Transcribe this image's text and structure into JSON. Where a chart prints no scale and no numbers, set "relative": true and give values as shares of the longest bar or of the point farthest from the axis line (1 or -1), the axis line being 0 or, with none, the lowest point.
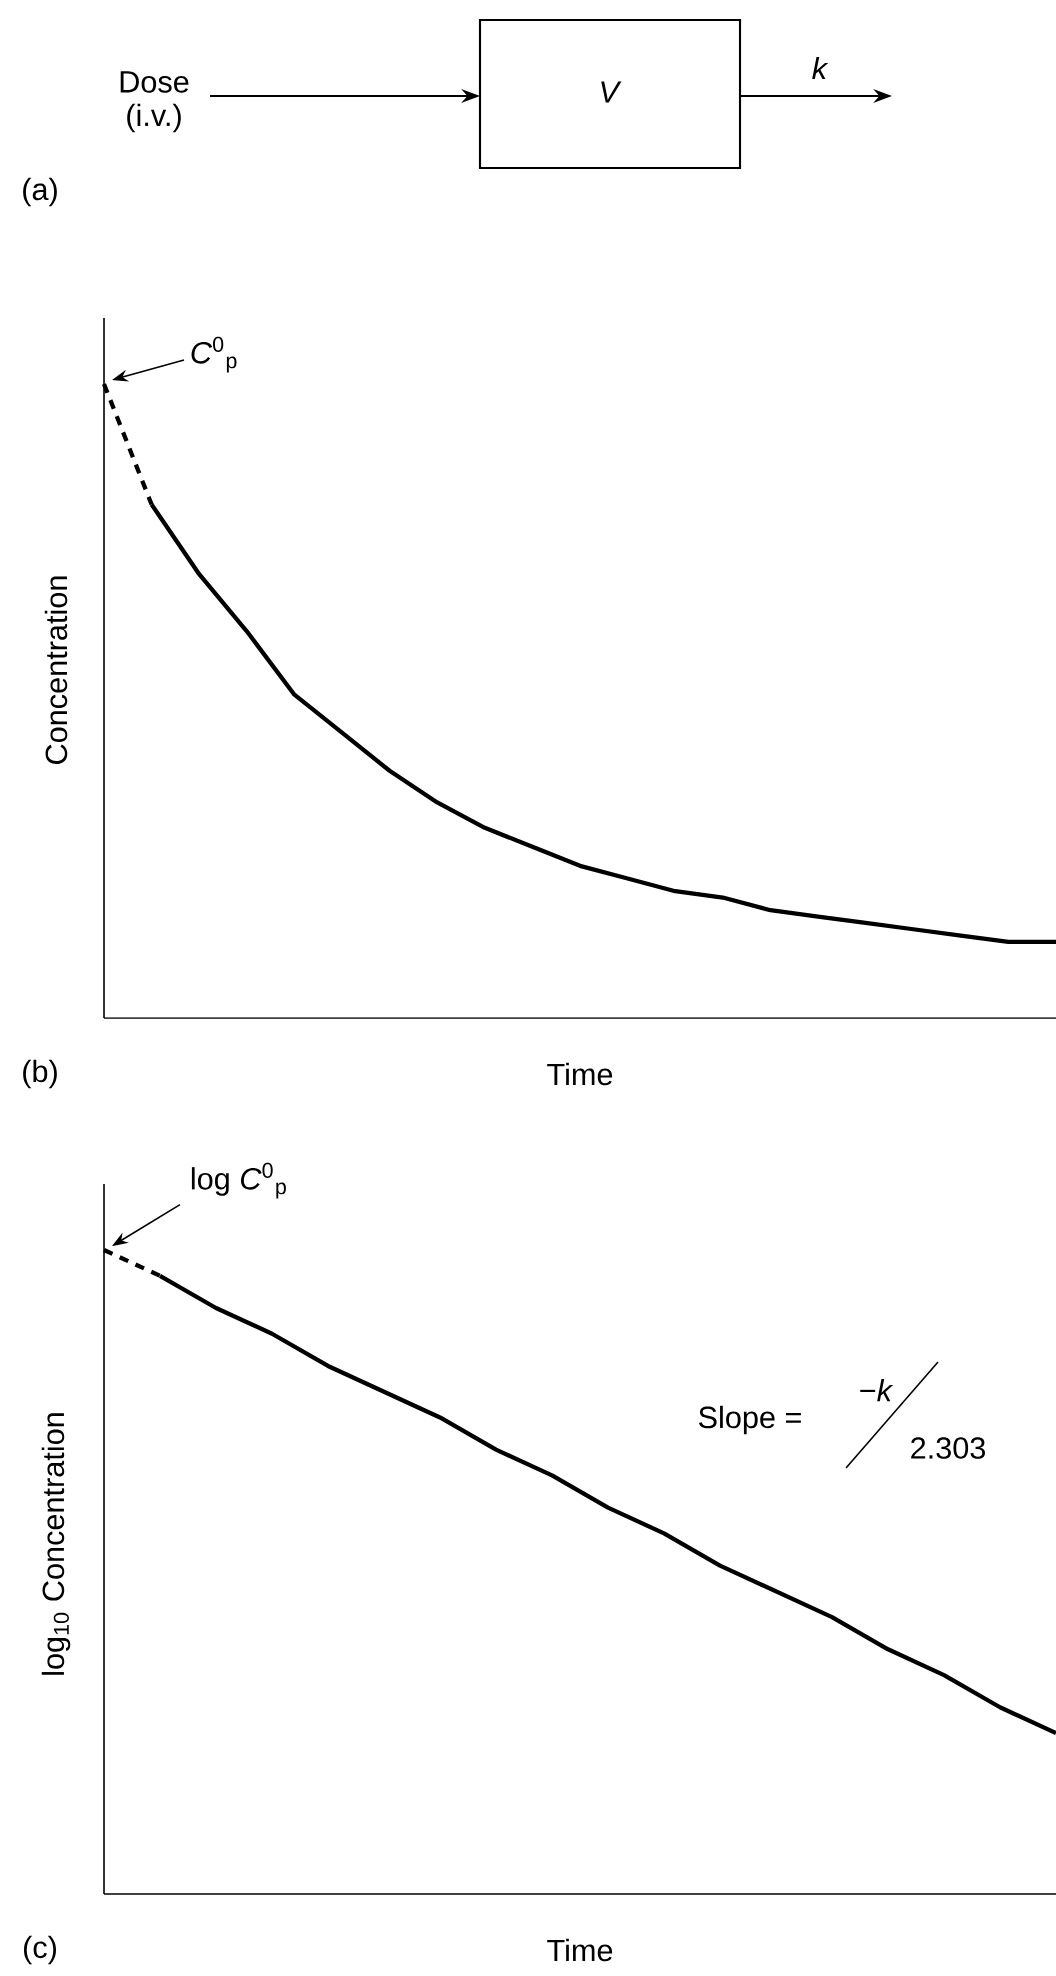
{
  "chart_data": [
    {
      "type": "other",
      "annotations": [
        "Dose",
        "(i.v.)",
        "*V*",
        "*k*",
        "(a)"
      ]
    },
    {
      "type": "line",
      "relative": true,
      "xlabel": "Time",
      "ylabel": "Concentration",
      "categories": [
        null,
        null,
        null,
        null,
        null,
        null,
        null,
        null,
        null,
        null,
        null,
        null,
        null,
        null,
        null,
        null,
        null,
        null,
        null,
        null,
        null
      ],
      "series": [
        {
          "color": "#000000",
          "line_style": "dashed",
          "values": [
            1.0,
            0.81,
            null,
            null,
            null,
            null,
            null,
            null,
            null,
            null,
            null,
            null,
            null,
            null,
            null,
            null,
            null,
            null,
            null,
            null,
            null
          ]
        },
        {
          "color": "#000000",
          "line_style": "solid",
          "values": [
            null,
            0.81,
            0.7,
            0.61,
            0.51,
            0.45,
            0.39,
            0.34,
            0.3,
            0.27,
            0.24,
            0.22,
            0.2,
            0.19,
            0.17,
            0.16,
            0.15,
            0.14,
            0.13,
            0.12,
            0.12
          ]
        }
      ],
      "annotations": [
        "(b)",
        "*C*$^{0}$$_{p}$"
      ]
    },
    {
      "type": "line",
      "relative": true,
      "xlabel": "Time",
      "ylabel": "log$_{10}$ Concentration",
      "categories": [
        null,
        null,
        null,
        null,
        null,
        null,
        null,
        null,
        null,
        null,
        null,
        null,
        null,
        null,
        null,
        null,
        null,
        null
      ],
      "series": [
        {
          "color": "#000000",
          "line_style": "dashed",
          "values": [
            1.0,
            0.96,
            null,
            null,
            null,
            null,
            null,
            null,
            null,
            null,
            null,
            null,
            null,
            null,
            null,
            null,
            null,
            null
          ]
        },
        {
          "color": "#000000",
          "line_style": "solid",
          "values": [
            null,
            0.96,
            0.91,
            0.87,
            0.82,
            0.78,
            0.74,
            0.69,
            0.65,
            0.6,
            0.56,
            0.51,
            0.47,
            0.43,
            0.38,
            0.34,
            0.29,
            0.25
          ]
        }
      ],
      "annotations": [
        "(c)",
        "log *C*$^{0}$$_{p}$",
        "Slope =",
        "−*k*",
        "2.303"
      ]
    }
  ]
}
